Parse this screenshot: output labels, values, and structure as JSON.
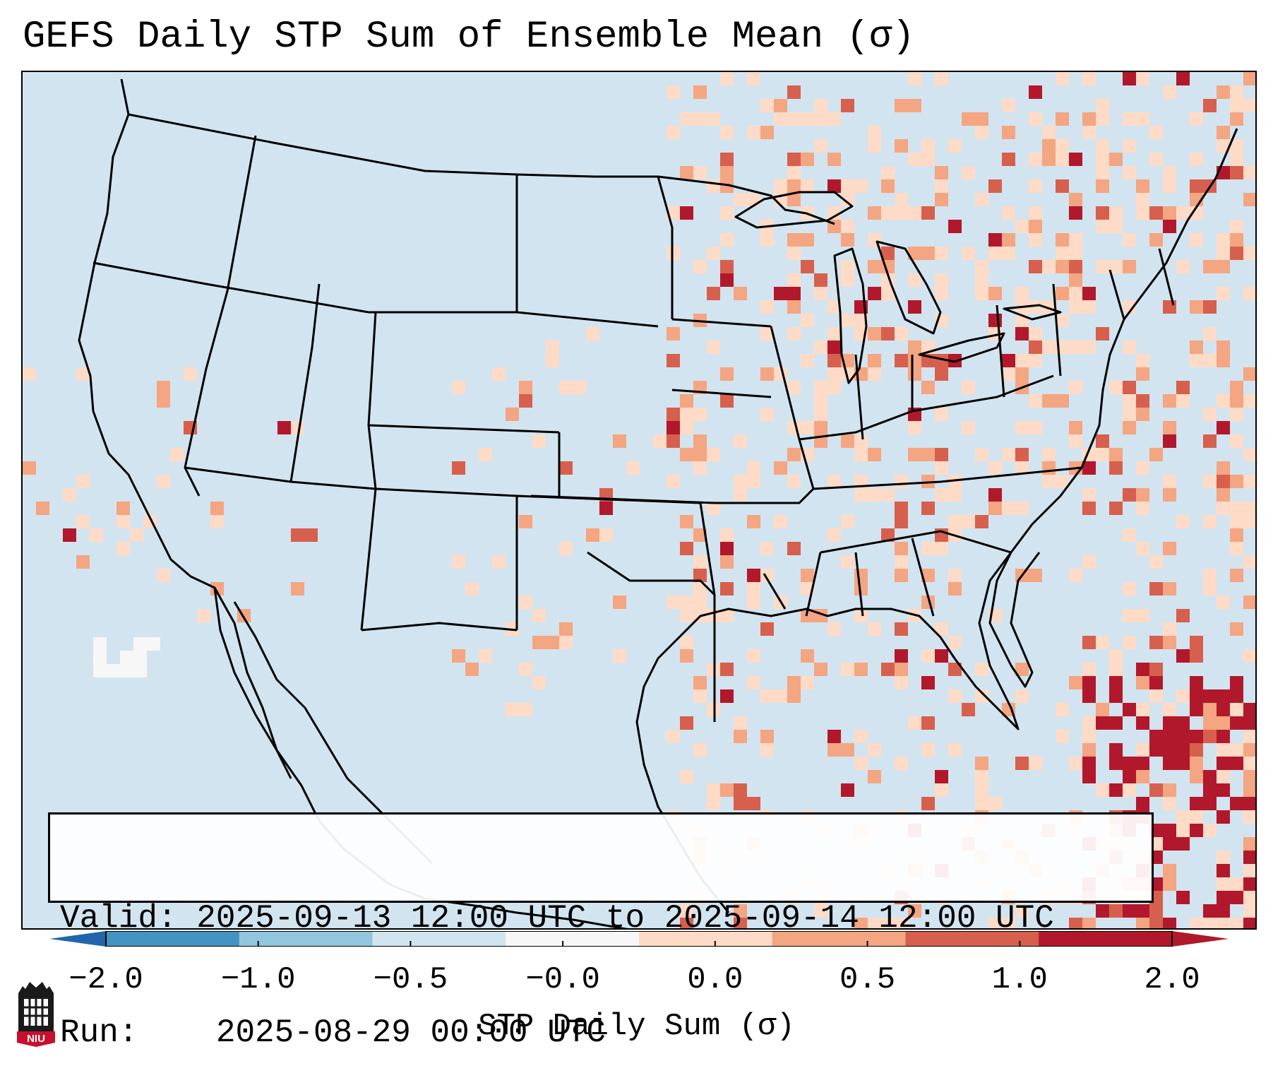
{
  "title": "GEFS Daily STP Sum of Ensemble Mean (σ)",
  "info": {
    "valid_label": "Valid:",
    "valid_value": "2025-09-13 12:00 UTC to 2025-09-14 12:00 UTC",
    "run_label": "Run:",
    "run_value": "2025-08-29 00:00 UTC"
  },
  "colorbar": {
    "label": "STP Daily Sum (σ)",
    "ticks": [
      "−2.0",
      "−1.0",
      "−0.5",
      "−0.0",
      "0.0",
      "0.5",
      "1.0",
      "2.0"
    ],
    "colors": [
      "#4393c3",
      "#92c5de",
      "#d1e5f0",
      "#f7f7f7",
      "#fddbc7",
      "#f4a582",
      "#d6604d",
      "#b2182b"
    ],
    "extend_low_color": "#2166ac",
    "extend_high_color": "#b2182b"
  },
  "map": {
    "background_color": "#d1e5f0",
    "border_color": "#000000"
  },
  "logo": {
    "text": "NIU",
    "color": "#c8102e"
  }
}
